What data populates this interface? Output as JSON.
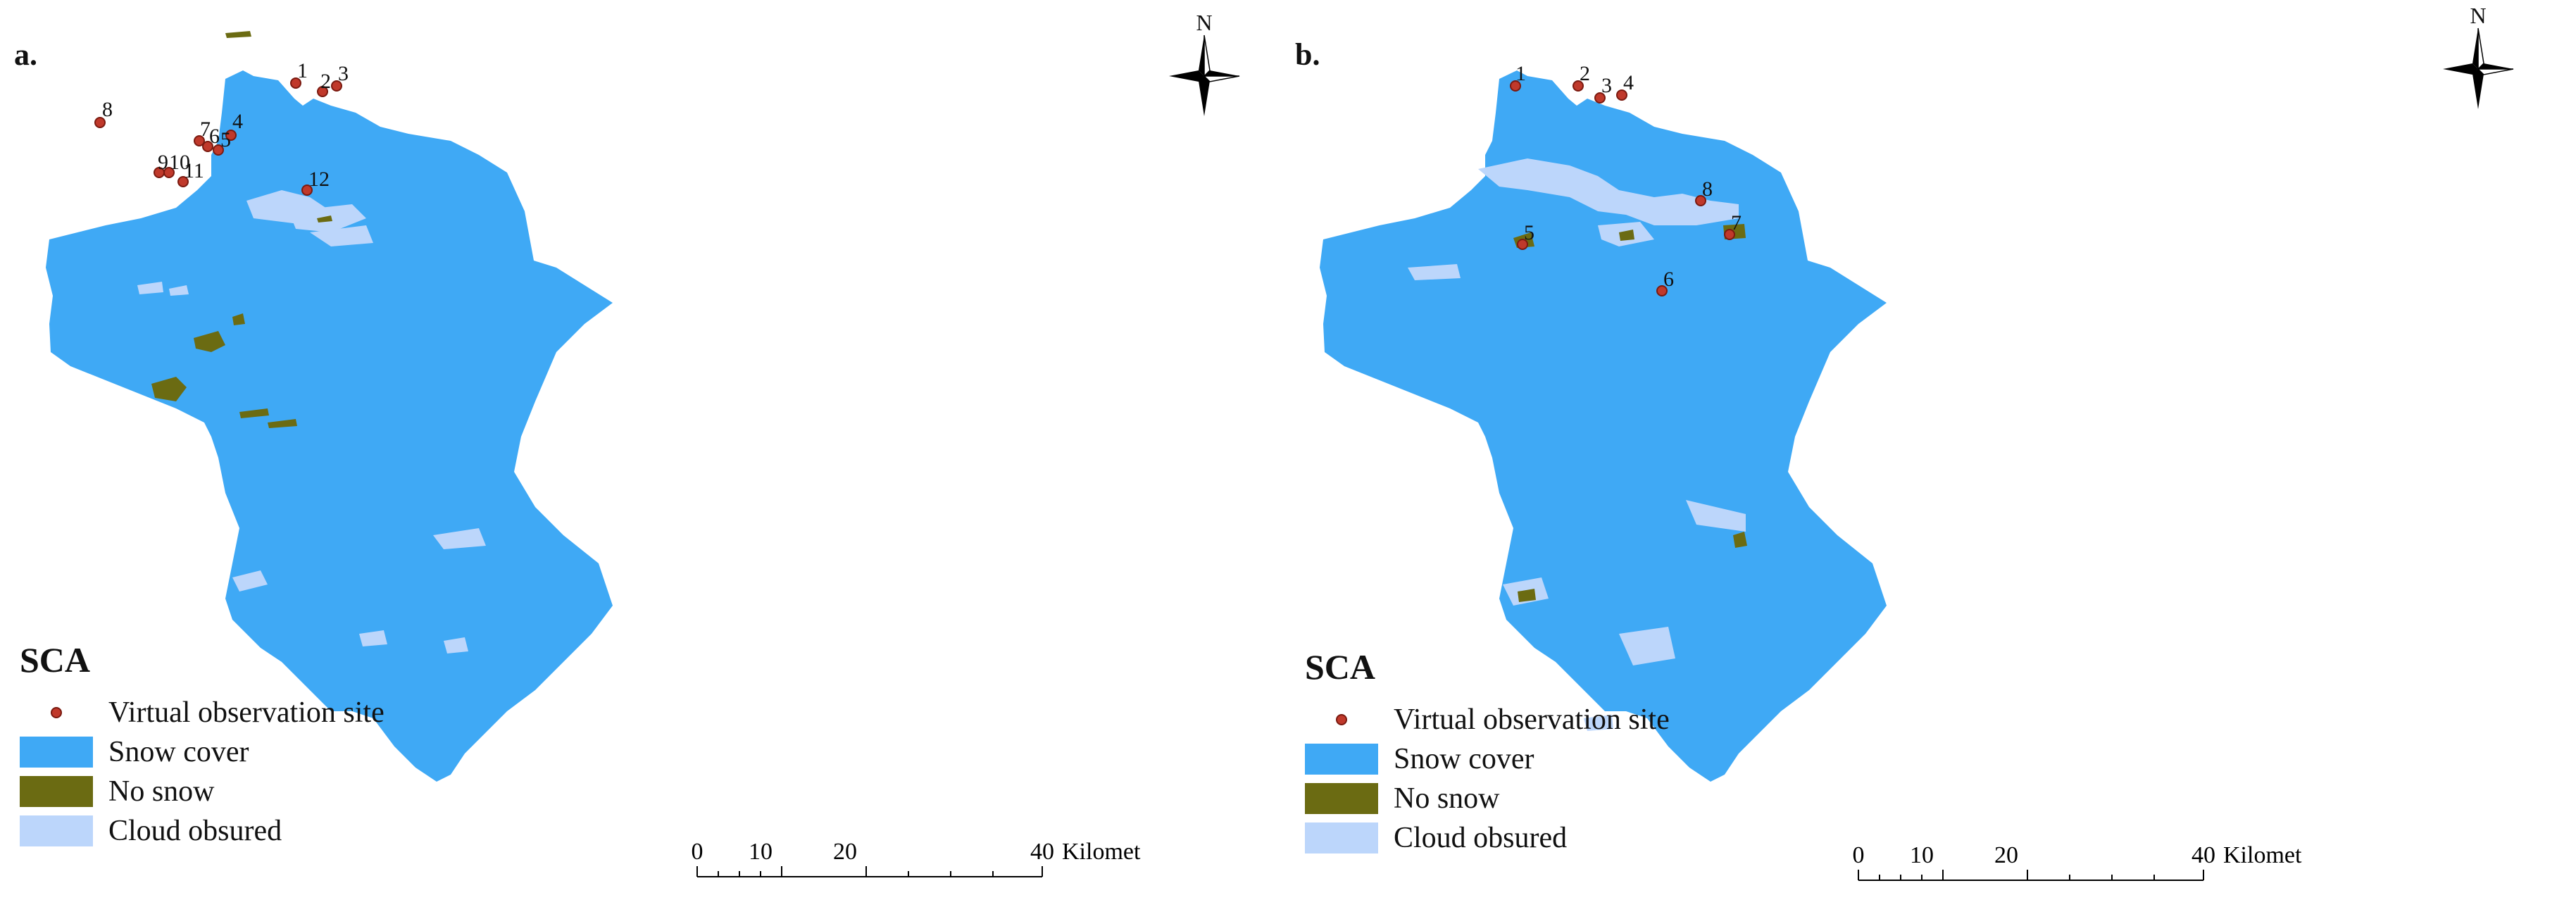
{
  "panels": [
    {
      "label": "a.",
      "north_label": "N",
      "legend": {
        "title": "SCA",
        "items": [
          {
            "label": "Virtual observation site"
          },
          {
            "label": "Snow cover",
            "color": "#3fa9f5"
          },
          {
            "label": "No snow",
            "color": "#6b6b12"
          },
          {
            "label": "Cloud obsured",
            "color": "#bcd6fb"
          }
        ]
      },
      "scale": {
        "ticks": [
          "0",
          "10",
          "20",
          "40"
        ],
        "unit": "Kilometers"
      },
      "sites": [
        "1",
        "2",
        "3",
        "4",
        "5",
        "6",
        "7",
        "8",
        "9",
        "10",
        "11",
        "12"
      ]
    },
    {
      "label": "b.",
      "north_label": "N",
      "legend": {
        "title": "SCA",
        "items": [
          {
            "label": "Virtual observation site"
          },
          {
            "label": "Snow cover",
            "color": "#3fa9f5"
          },
          {
            "label": "No snow",
            "color": "#6b6b12"
          },
          {
            "label": "Cloud obsured",
            "color": "#bcd6fb"
          }
        ]
      },
      "scale": {
        "ticks": [
          "0",
          "10",
          "20",
          "40"
        ],
        "unit": "Kilometers"
      },
      "sites": [
        "1",
        "2",
        "3",
        "4",
        "5",
        "6",
        "7",
        "8"
      ]
    }
  ],
  "colors": {
    "snow": "#3fa9f5",
    "no_snow": "#6b6b12",
    "cloud": "#bcd6fb",
    "site": "#c0392b"
  }
}
